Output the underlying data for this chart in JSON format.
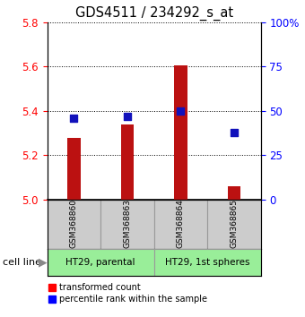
{
  "title": "GDS4511 / 234292_s_at",
  "samples": [
    "GSM368860",
    "GSM368863",
    "GSM368864",
    "GSM368865"
  ],
  "transformed_counts": [
    5.28,
    5.34,
    5.605,
    5.06
  ],
  "percentile_ranks": [
    46,
    47,
    50,
    38
  ],
  "ylim_left": [
    5.0,
    5.8
  ],
  "ylim_right": [
    0,
    100
  ],
  "yticks_left": [
    5.0,
    5.2,
    5.4,
    5.6,
    5.8
  ],
  "yticks_right": [
    0,
    25,
    50,
    75,
    100
  ],
  "ytick_labels_right": [
    "0",
    "25",
    "50",
    "75",
    "100%"
  ],
  "bar_color": "#bb1111",
  "dot_color": "#1111bb",
  "sample_box_color": "#cccccc",
  "cell_line_box_color": "#99ee99",
  "bar_width": 0.25,
  "dot_size": 40,
  "cell_line_groups": [
    {
      "label": "HT29, parental",
      "cols": [
        0,
        1
      ]
    },
    {
      "label": "HT29, 1st spheres",
      "cols": [
        2,
        3
      ]
    }
  ]
}
